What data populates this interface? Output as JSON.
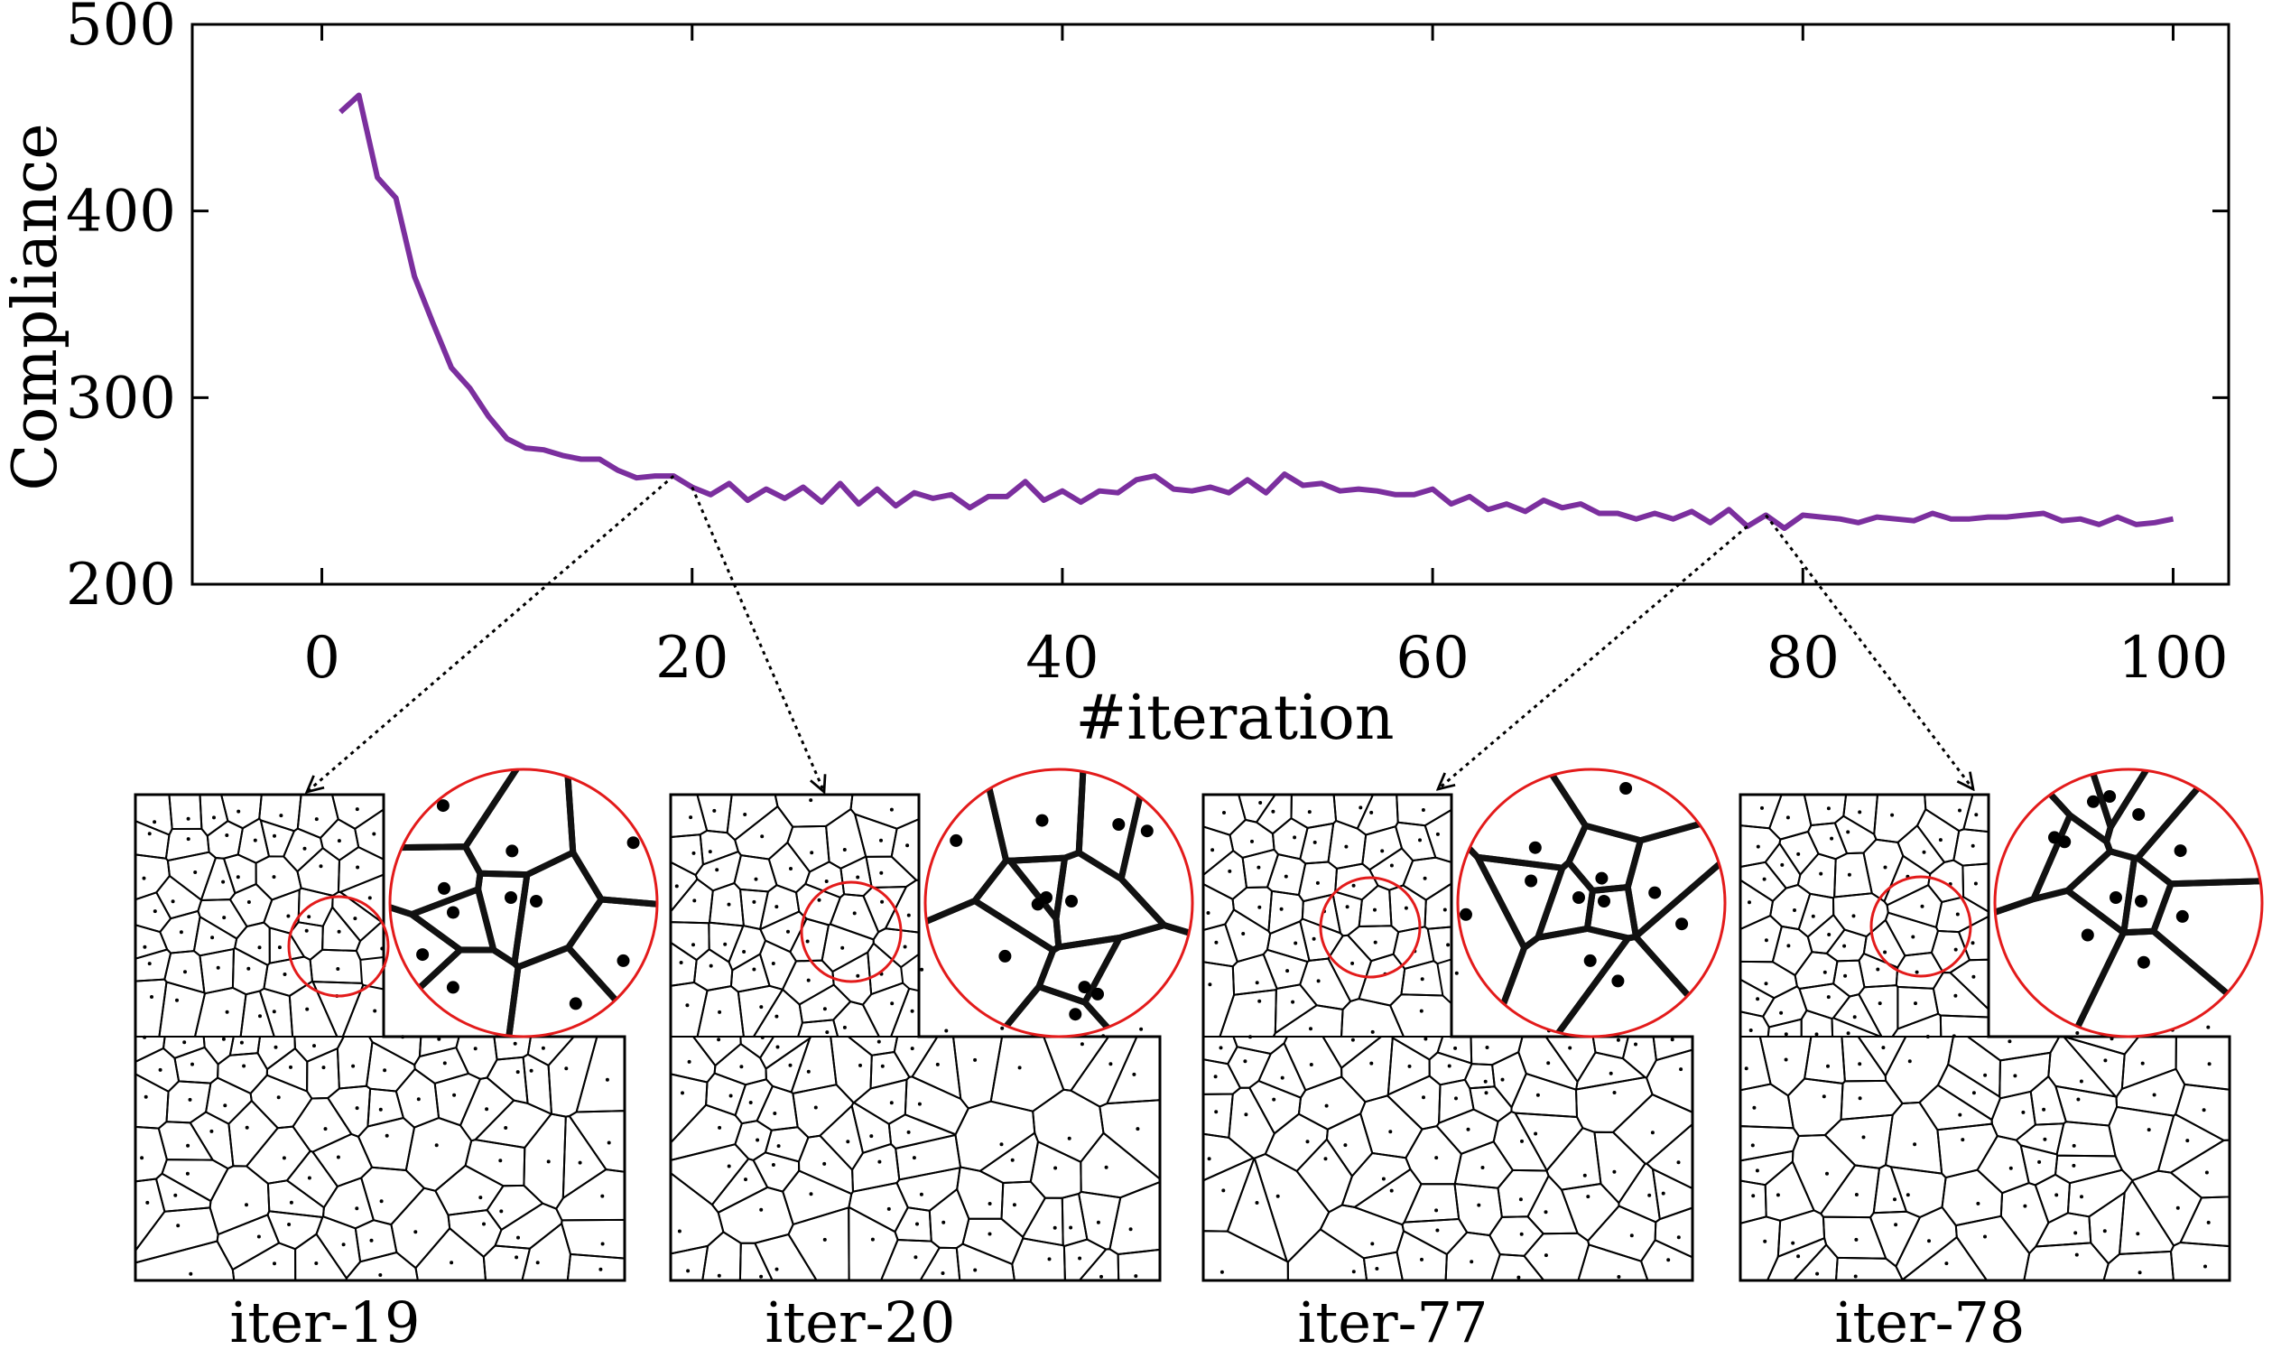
{
  "chart_data": {
    "type": "line",
    "title": "",
    "xlabel": "#iteration",
    "ylabel": "Compliance",
    "xlim": [
      -7,
      103
    ],
    "ylim": [
      200,
      500
    ],
    "xticks": [
      0,
      20,
      40,
      60,
      80,
      100
    ],
    "yticks": [
      200,
      300,
      400,
      500
    ],
    "grid": false,
    "series": [
      {
        "name": "Compliance",
        "color": "#7b2f9e",
        "x": [
          1,
          2,
          3,
          4,
          5,
          6,
          7,
          8,
          9,
          10,
          11,
          12,
          13,
          14,
          15,
          16,
          17,
          18,
          19,
          20,
          21,
          22,
          23,
          24,
          25,
          26,
          27,
          28,
          29,
          30,
          31,
          32,
          33,
          34,
          35,
          36,
          37,
          38,
          39,
          40,
          41,
          42,
          43,
          44,
          45,
          46,
          47,
          48,
          49,
          50,
          51,
          52,
          53,
          54,
          55,
          56,
          57,
          58,
          59,
          60,
          61,
          62,
          63,
          64,
          65,
          66,
          67,
          68,
          69,
          70,
          71,
          72,
          73,
          74,
          75,
          76,
          77,
          78,
          79,
          80,
          81,
          82,
          83,
          84,
          85,
          86,
          87,
          88,
          89,
          90,
          91,
          92,
          93,
          94,
          95,
          96,
          97,
          98,
          99,
          100
        ],
        "y": [
          453,
          462,
          418,
          407,
          365,
          340,
          316,
          305,
          290,
          278,
          273,
          272,
          269,
          267,
          267,
          261,
          257,
          258,
          258,
          252,
          248,
          254,
          245,
          251,
          246,
          252,
          244,
          254,
          243,
          251,
          242,
          249,
          246,
          248,
          241,
          247,
          247,
          255,
          245,
          250,
          244,
          250,
          249,
          256,
          258,
          251,
          250,
          252,
          249,
          256,
          249,
          259,
          253,
          254,
          250,
          251,
          250,
          248,
          248,
          251,
          243,
          247,
          240,
          243,
          239,
          245,
          241,
          243,
          238,
          238,
          235,
          238,
          235,
          239,
          233,
          240,
          231,
          237,
          230,
          237,
          236,
          235,
          233,
          236,
          235,
          234,
          238,
          235,
          235,
          236,
          236,
          237,
          238,
          234,
          235,
          232,
          236,
          232,
          233,
          235
        ]
      }
    ],
    "annotations": [
      {
        "from_x": 19,
        "to_panel": "iter-19"
      },
      {
        "from_x": 20,
        "to_panel": "iter-20"
      },
      {
        "from_x": 77,
        "to_panel": "iter-77"
      },
      {
        "from_x": 78,
        "to_panel": "iter-78"
      }
    ]
  },
  "panels": [
    {
      "label": "iter-19",
      "zoom_variant": "a"
    },
    {
      "label": "iter-20",
      "zoom_variant": "b"
    },
    {
      "label": "iter-77",
      "zoom_variant": "c"
    },
    {
      "label": "iter-78",
      "zoom_variant": "d"
    }
  ],
  "colors": {
    "line": "#7b2f9e",
    "zoom_circle": "#e31b1b"
  }
}
